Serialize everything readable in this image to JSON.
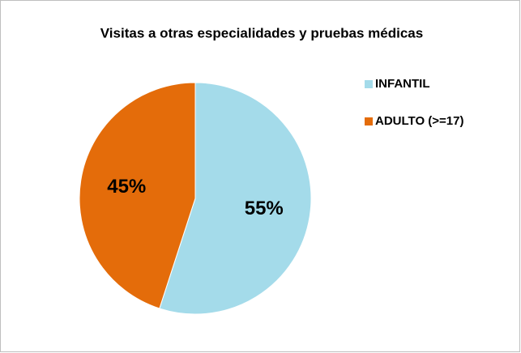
{
  "chart_data": {
    "type": "pie",
    "title": "Visitas a otras especialidades y pruebas médicas",
    "categories": [
      "INFANTIL",
      "ADULTO (>=17)"
    ],
    "values": [
      55,
      45
    ],
    "value_labels": [
      "55%",
      "45%"
    ],
    "colors": [
      "#a4dbea",
      "#e46c0a"
    ],
    "legend": "right"
  }
}
